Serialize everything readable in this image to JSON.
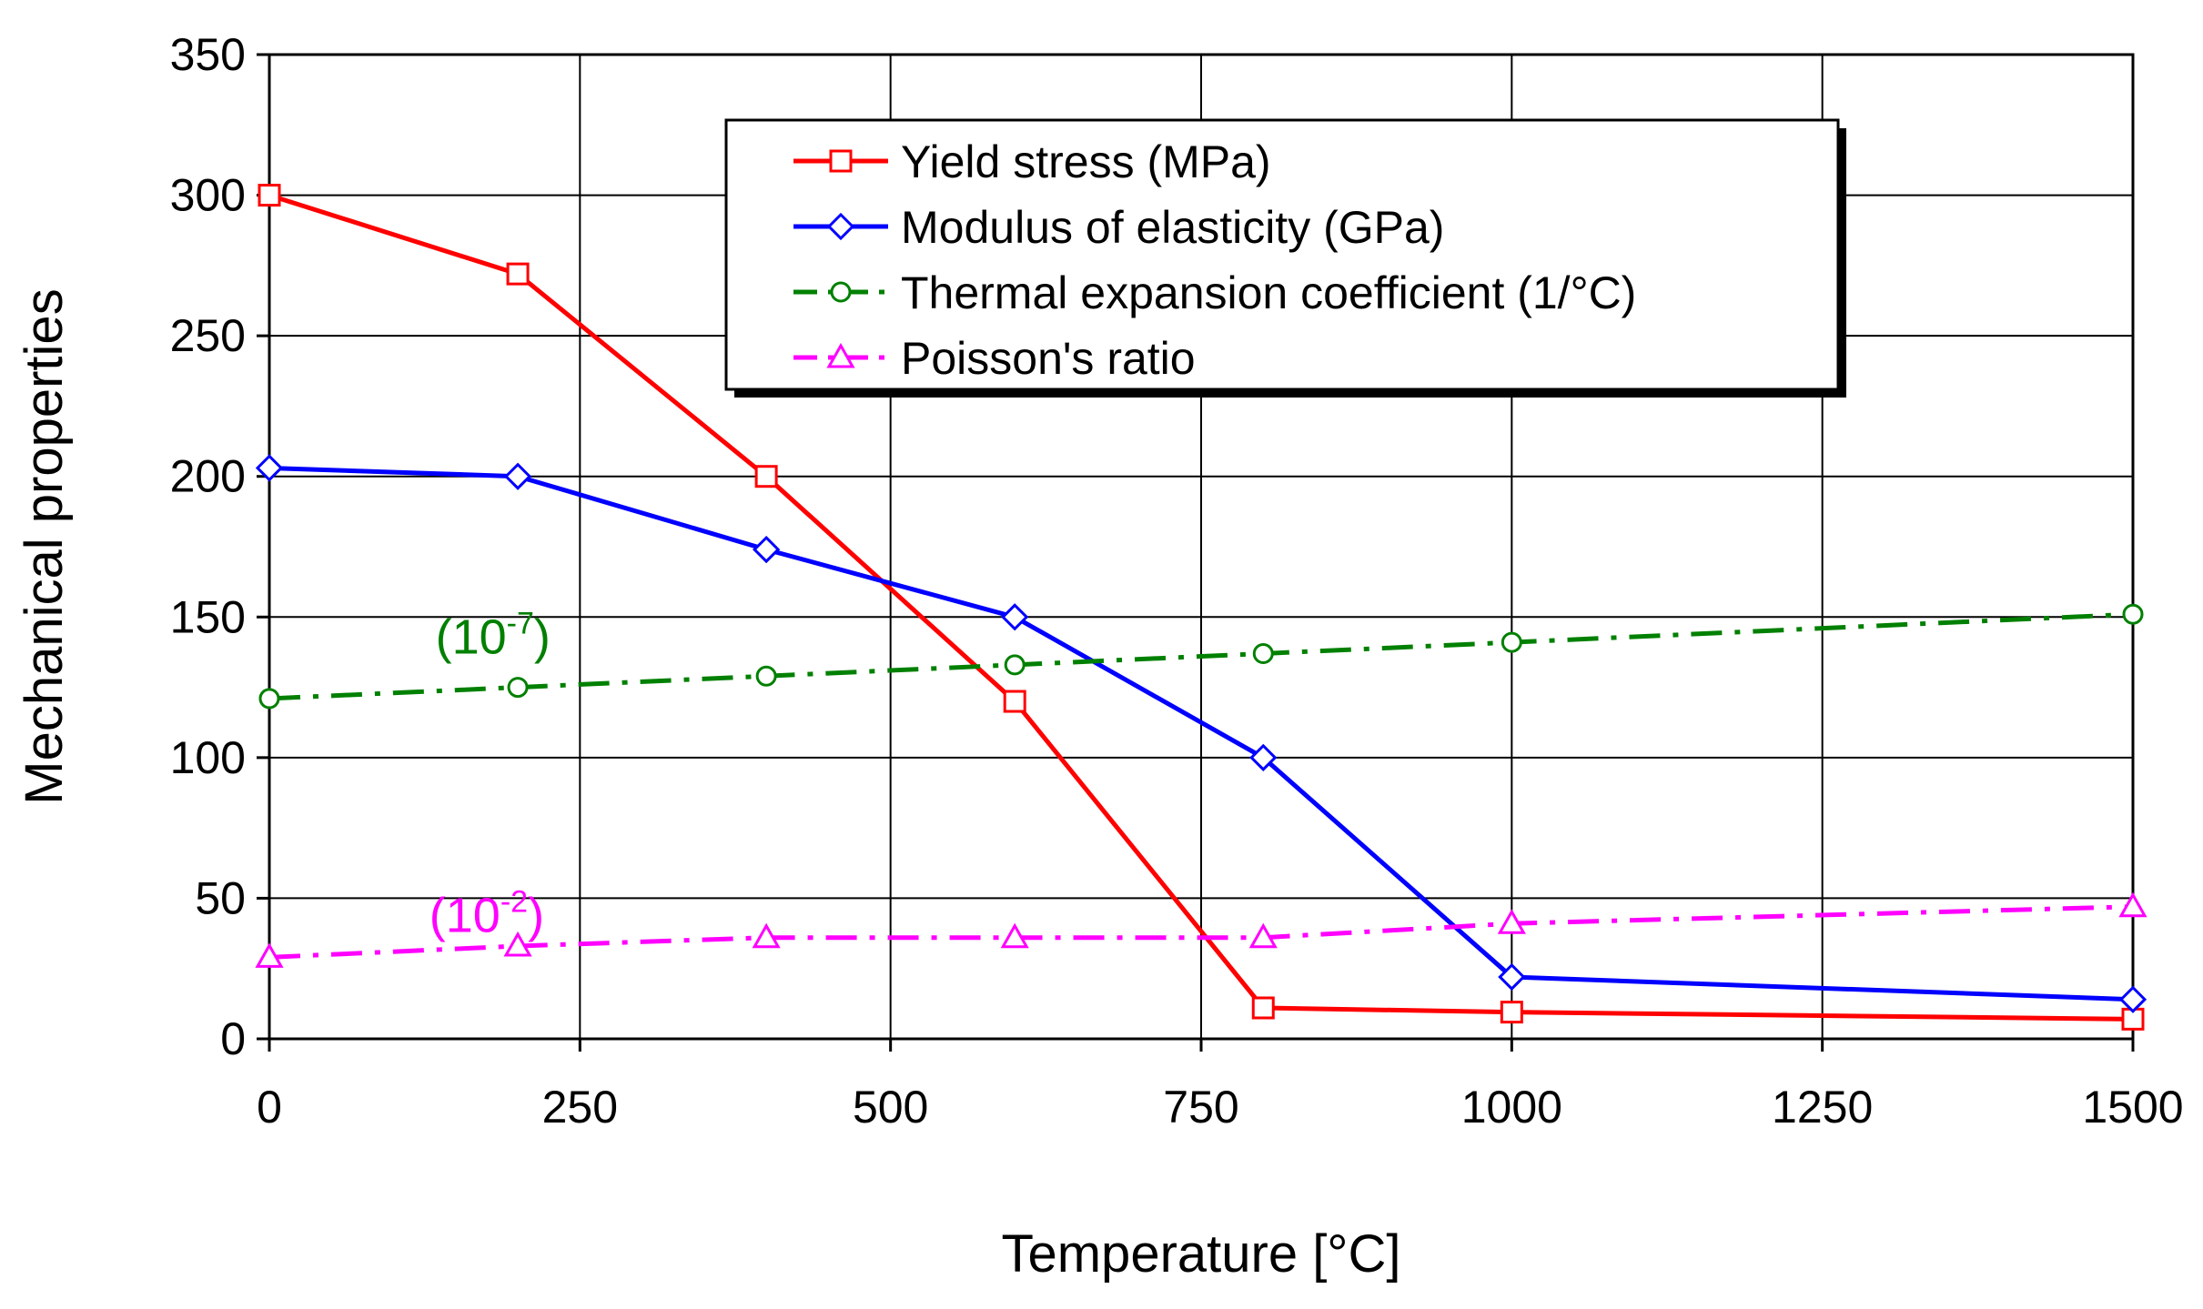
{
  "chart_data": {
    "type": "line",
    "title": "",
    "xlabel": "Temperature [°C]",
    "ylabel": "Mechanical properties",
    "xlim": [
      0,
      1500
    ],
    "ylim": [
      0,
      350
    ],
    "xticks": [
      0,
      250,
      500,
      750,
      1000,
      1250,
      1500
    ],
    "yticks": [
      0,
      50,
      100,
      150,
      200,
      250,
      300,
      350
    ],
    "grid": true,
    "legend_position": "top-center",
    "series": [
      {
        "name": "Yield stress (MPa)",
        "color": "#ff0000",
        "marker": "square",
        "dash": "solid",
        "x": [
          0,
          200,
          400,
          600,
          800,
          1000,
          1500
        ],
        "y": [
          300,
          272,
          200,
          120,
          11,
          9.5,
          7
        ]
      },
      {
        "name": "Modulus of elasticity (GPa)",
        "color": "#0000ff",
        "marker": "diamond",
        "dash": "solid",
        "x": [
          0,
          200,
          400,
          600,
          800,
          1000,
          1500
        ],
        "y": [
          203,
          200,
          174,
          150,
          100,
          22,
          14
        ]
      },
      {
        "name": "Thermal expansion coefficient (1/°C)",
        "color": "#008000",
        "marker": "circle",
        "dash": "dashdot",
        "x": [
          0,
          200,
          400,
          600,
          800,
          1000,
          1500
        ],
        "y": [
          121,
          125,
          129,
          133,
          137,
          141,
          151
        ]
      },
      {
        "name": "Poisson's ratio",
        "color": "#ff00ff",
        "marker": "triangle",
        "dash": "dashdot",
        "x": [
          0,
          200,
          400,
          600,
          800,
          1000,
          1500
        ],
        "y": [
          29,
          33,
          36,
          36,
          36,
          41,
          47
        ]
      }
    ],
    "annotations": [
      {
        "base": "(10",
        "sup": "-7",
        "close": ")",
        "color": "#008000",
        "x": 180,
        "y": 137
      },
      {
        "base": "(10",
        "sup": "-2",
        "close": ")",
        "color": "#ff00ff",
        "x": 175,
        "y": 38
      }
    ]
  }
}
